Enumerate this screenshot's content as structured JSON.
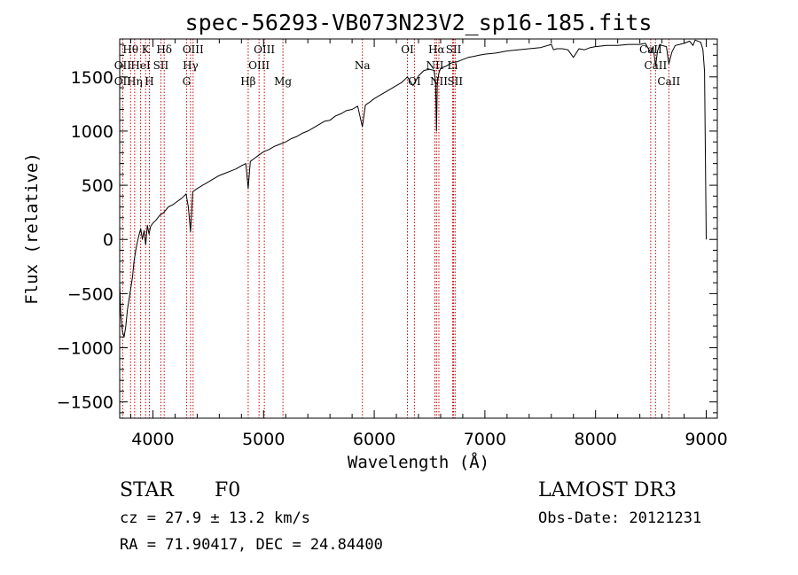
{
  "chart_data": {
    "type": "line",
    "title": "spec-56293-VB073N23V2_sp16-185.fits",
    "xlabel": "Wavelength (Å)",
    "ylabel": "Flux (relative)",
    "xlim": [
      3700,
      9100
    ],
    "ylim": [
      -1650,
      1850
    ],
    "x_ticks": [
      4000,
      5000,
      6000,
      7000,
      8000,
      9000
    ],
    "x_tick_labels": [
      "4000",
      "5000",
      "6000",
      "7000",
      "8000",
      "9000"
    ],
    "y_ticks": [
      1500,
      1000,
      500,
      0,
      -500,
      -1000,
      -1500
    ],
    "y_tick_labels": [
      "1500",
      "1000",
      "500",
      "0",
      "−500",
      "−1000",
      "−1500"
    ],
    "line_color": "#000000",
    "marker_color": "#cc0000",
    "spectrum": {
      "x": [
        3700,
        3710,
        3725,
        3740,
        3755,
        3770,
        3785,
        3800,
        3815,
        3830,
        3845,
        3860,
        3875,
        3890,
        3905,
        3920,
        3935,
        3950,
        3965,
        3980,
        4000,
        4030,
        4060,
        4100,
        4140,
        4180,
        4220,
        4260,
        4300,
        4320,
        4340,
        4360,
        4400,
        4450,
        4500,
        4550,
        4600,
        4650,
        4700,
        4750,
        4800,
        4840,
        4861,
        4880,
        4920,
        4960,
        5000,
        5050,
        5100,
        5150,
        5200,
        5250,
        5300,
        5350,
        5400,
        5450,
        5500,
        5550,
        5600,
        5650,
        5700,
        5750,
        5800,
        5850,
        5893,
        5920,
        5950,
        6000,
        6050,
        6100,
        6150,
        6200,
        6250,
        6300,
        6350,
        6400,
        6450,
        6500,
        6540,
        6555,
        6563,
        6570,
        6585,
        6600,
        6650,
        6700,
        6750,
        6800,
        6850,
        6900,
        6950,
        7000,
        7100,
        7200,
        7300,
        7400,
        7500,
        7600,
        7620,
        7650,
        7700,
        7750,
        7800,
        7850,
        7900,
        7950,
        8000,
        8100,
        8200,
        8300,
        8400,
        8450,
        8498,
        8520,
        8542,
        8560,
        8580,
        8600,
        8640,
        8662,
        8690,
        8720,
        8760,
        8800,
        8850,
        8880,
        8900,
        8950,
        8970,
        8985,
        9000
      ],
      "y": [
        -400,
        -700,
        -850,
        -900,
        -800,
        -650,
        -550,
        -450,
        -350,
        -200,
        -100,
        -20,
        40,
        100,
        0,
        80,
        -50,
        130,
        50,
        120,
        150,
        180,
        220,
        250,
        300,
        320,
        350,
        380,
        420,
        300,
        70,
        440,
        470,
        500,
        530,
        560,
        590,
        610,
        630,
        650,
        680,
        700,
        470,
        720,
        750,
        780,
        810,
        830,
        860,
        880,
        900,
        930,
        950,
        980,
        1000,
        1030,
        1060,
        1090,
        1100,
        1140,
        1160,
        1190,
        1200,
        1230,
        1040,
        1240,
        1260,
        1300,
        1330,
        1360,
        1390,
        1420,
        1450,
        1500,
        1420,
        1510,
        1560,
        1570,
        1560,
        1450,
        1000,
        1440,
        1540,
        1580,
        1600,
        1630,
        1640,
        1660,
        1680,
        1690,
        1700,
        1710,
        1720,
        1740,
        1750,
        1760,
        1770,
        1800,
        1750,
        1760,
        1760,
        1750,
        1680,
        1760,
        1750,
        1770,
        1780,
        1790,
        1790,
        1800,
        1800,
        1810,
        1720,
        1780,
        1600,
        1740,
        1800,
        1790,
        1780,
        1620,
        1730,
        1790,
        1800,
        1810,
        1830,
        1790,
        1840,
        1820,
        1750,
        1550,
        0
      ]
    },
    "lines": [
      {
        "label": "Hθ",
        "wave": 3798,
        "row": 0
      },
      {
        "label": "K",
        "wave": 3934,
        "row": 0
      },
      {
        "label": "Hδ",
        "wave": 4102,
        "row": 0
      },
      {
        "label": "OIII",
        "wave": 4363,
        "row": 0
      },
      {
        "label": "OIII",
        "wave": 5007,
        "row": 0
      },
      {
        "label": "OI",
        "wave": 6300,
        "row": 0
      },
      {
        "label": "Hα",
        "wave": 6563,
        "row": 0
      },
      {
        "label": "SII",
        "wave": 6717,
        "row": 0
      },
      {
        "label": "CaII",
        "wave": 8498,
        "row": 0
      },
      {
        "label": "OII",
        "wave": 3727,
        "row": 1
      },
      {
        "label": "HeI",
        "wave": 3889,
        "row": 1
      },
      {
        "label": "SII",
        "wave": 4072,
        "row": 1
      },
      {
        "label": "Hγ",
        "wave": 4340,
        "row": 1
      },
      {
        "label": "OIII",
        "wave": 4959,
        "row": 1
      },
      {
        "label": "Na",
        "wave": 5893,
        "row": 1
      },
      {
        "label": "NII",
        "wave": 6548,
        "row": 1
      },
      {
        "label": "Li",
        "wave": 6708,
        "row": 1
      },
      {
        "label": "CaII",
        "wave": 8542,
        "row": 1
      },
      {
        "label": "OII",
        "wave": 3727,
        "row": 2
      },
      {
        "label": "Hη",
        "wave": 3835,
        "row": 2
      },
      {
        "label": "H",
        "wave": 3968,
        "row": 2
      },
      {
        "label": "G",
        "wave": 4304,
        "row": 2
      },
      {
        "label": "Hβ",
        "wave": 4861,
        "row": 2
      },
      {
        "label": "Mg",
        "wave": 5175,
        "row": 2
      },
      {
        "label": "OI",
        "wave": 6363,
        "row": 2
      },
      {
        "label": "NII",
        "wave": 6584,
        "row": 2
      },
      {
        "label": "SII",
        "wave": 6731,
        "row": 2
      },
      {
        "label": "CaII",
        "wave": 8662,
        "row": 2
      }
    ]
  },
  "info": {
    "class": "STAR",
    "subclass": "F0",
    "survey": "LAMOST DR3",
    "cz": "cz = 27.9 ± 13.2 km/s",
    "obs_date": "Obs-Date: 20121231",
    "radec": "RA =  71.90417, DEC =  24.84400"
  }
}
